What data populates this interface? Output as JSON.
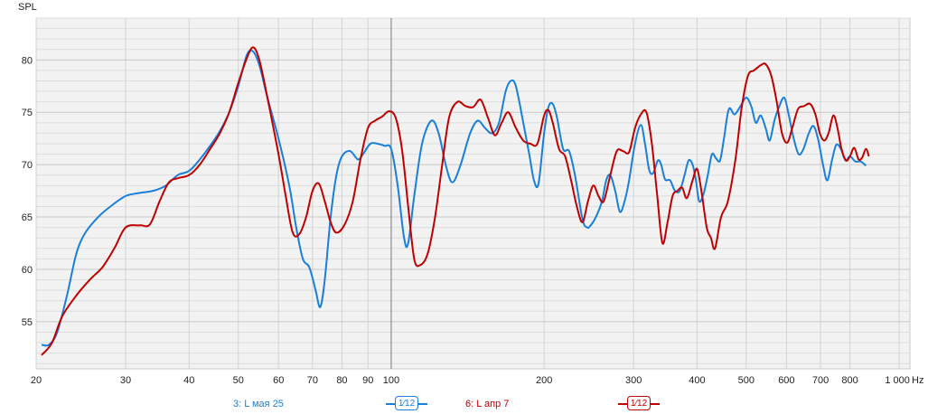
{
  "chart_data": {
    "type": "line",
    "ylabel": "SPL",
    "xlabel": "Hz",
    "x_scale": "log",
    "xlim": [
      20,
      1050
    ],
    "ylim": [
      50.5,
      84
    ],
    "grid": true,
    "yticks": [
      55,
      60,
      65,
      70,
      75,
      80
    ],
    "xtick_labels": [
      {
        "v": 20,
        "t": "20"
      },
      {
        "v": 30,
        "t": "30"
      },
      {
        "v": 40,
        "t": "40"
      },
      {
        "v": 50,
        "t": "50"
      },
      {
        "v": 60,
        "t": "60"
      },
      {
        "v": 70,
        "t": "70"
      },
      {
        "v": 80,
        "t": "80"
      },
      {
        "v": 90,
        "t": "90"
      },
      {
        "v": 100,
        "t": "100"
      },
      {
        "v": 200,
        "t": "200"
      },
      {
        "v": 300,
        "t": "300"
      },
      {
        "v": 400,
        "t": "400"
      },
      {
        "v": 500,
        "t": "500"
      },
      {
        "v": 600,
        "t": "600"
      },
      {
        "v": 700,
        "t": "700"
      },
      {
        "v": 800,
        "t": "800"
      },
      {
        "v": 1000,
        "t": "1 000"
      }
    ],
    "cursor_x": 100,
    "series": [
      {
        "name": "3: L мая 25",
        "color": "#1a7fd8",
        "smoothing": "1/12",
        "points": [
          [
            20.5,
            52.8
          ],
          [
            21.2,
            52.8
          ],
          [
            22,
            54
          ],
          [
            23,
            57.5
          ],
          [
            24,
            61.5
          ],
          [
            25,
            63.5
          ],
          [
            26.5,
            65
          ],
          [
            28,
            66
          ],
          [
            30,
            67
          ],
          [
            32,
            67.3
          ],
          [
            34,
            67.5
          ],
          [
            36,
            68
          ],
          [
            38,
            69
          ],
          [
            40,
            69.4
          ],
          [
            42,
            70.5
          ],
          [
            44,
            71.8
          ],
          [
            46,
            73.2
          ],
          [
            48,
            75
          ],
          [
            50,
            77.5
          ],
          [
            52,
            80.5
          ],
          [
            53.5,
            80.8
          ],
          [
            55,
            79.5
          ],
          [
            57,
            76.5
          ],
          [
            60,
            72.5
          ],
          [
            63,
            68
          ],
          [
            65,
            64
          ],
          [
            67,
            61
          ],
          [
            69,
            60.2
          ],
          [
            71,
            58
          ],
          [
            72.5,
            56.4
          ],
          [
            74,
            59
          ],
          [
            76,
            65
          ],
          [
            78,
            69
          ],
          [
            80,
            70.8
          ],
          [
            83,
            71.3
          ],
          [
            86,
            70.5
          ],
          [
            88,
            71
          ],
          [
            91,
            72
          ],
          [
            94,
            72
          ],
          [
            97,
            71.8
          ],
          [
            100,
            71.5
          ],
          [
            103,
            68
          ],
          [
            106,
            63
          ],
          [
            108,
            62.5
          ],
          [
            111,
            67
          ],
          [
            115,
            72
          ],
          [
            120,
            74.2
          ],
          [
            124,
            73
          ],
          [
            128,
            70
          ],
          [
            132,
            68.3
          ],
          [
            137,
            70
          ],
          [
            143,
            73
          ],
          [
            148,
            74.2
          ],
          [
            153,
            73.5
          ],
          [
            158,
            73
          ],
          [
            163,
            74
          ],
          [
            168,
            77
          ],
          [
            172,
            78
          ],
          [
            176,
            77.5
          ],
          [
            182,
            74
          ],
          [
            187,
            71
          ],
          [
            191,
            68.5
          ],
          [
            195,
            68.2
          ],
          [
            200,
            73
          ],
          [
            204,
            75.5
          ],
          [
            208,
            75.8
          ],
          [
            212,
            74.5
          ],
          [
            218,
            71.5
          ],
          [
            224,
            71.3
          ],
          [
            230,
            69
          ],
          [
            238,
            64.8
          ],
          [
            243,
            64
          ],
          [
            247,
            64.2
          ],
          [
            253,
            65
          ],
          [
            260,
            66.5
          ],
          [
            265,
            68.5
          ],
          [
            270,
            69
          ],
          [
            276,
            67.5
          ],
          [
            282,
            65.5
          ],
          [
            288,
            66.5
          ],
          [
            294,
            68.5
          ],
          [
            302,
            72
          ],
          [
            310,
            73.8
          ],
          [
            316,
            72
          ],
          [
            322,
            69.5
          ],
          [
            328,
            69.2
          ],
          [
            335,
            70.4
          ],
          [
            340,
            70
          ],
          [
            346,
            68.6
          ],
          [
            354,
            68.5
          ],
          [
            362,
            67.5
          ],
          [
            370,
            67.5
          ],
          [
            378,
            69
          ],
          [
            385,
            70.4
          ],
          [
            392,
            70
          ],
          [
            398,
            68.5
          ],
          [
            404,
            66.5
          ],
          [
            412,
            67.2
          ],
          [
            420,
            69
          ],
          [
            428,
            71
          ],
          [
            436,
            70.6
          ],
          [
            444,
            70.4
          ],
          [
            452,
            72.5
          ],
          [
            462,
            75.3
          ],
          [
            474,
            74.8
          ],
          [
            486,
            75.5
          ],
          [
            500,
            76.4
          ],
          [
            512,
            75.5
          ],
          [
            522,
            74
          ],
          [
            534,
            74.7
          ],
          [
            546,
            73.5
          ],
          [
            556,
            72.3
          ],
          [
            568,
            74.2
          ],
          [
            580,
            75.5
          ],
          [
            594,
            76.4
          ],
          [
            606,
            74.8
          ],
          [
            620,
            72.5
          ],
          [
            634,
            71
          ],
          [
            648,
            71.5
          ],
          [
            664,
            73
          ],
          [
            678,
            73.7
          ],
          [
            692,
            72.5
          ],
          [
            708,
            70
          ],
          [
            722,
            68.5
          ],
          [
            738,
            70.5
          ],
          [
            752,
            71.9
          ],
          [
            768,
            71.5
          ],
          [
            784,
            70.4
          ],
          [
            800,
            70.8
          ],
          [
            820,
            70.3
          ],
          [
            840,
            70.3
          ],
          [
            860,
            69.9
          ]
        ]
      },
      {
        "name": "6: L апр 7",
        "color": "#c00000",
        "smoothing": "1/12",
        "points": [
          [
            20.5,
            51.8
          ],
          [
            21.5,
            53
          ],
          [
            22.5,
            55.5
          ],
          [
            24,
            57.5
          ],
          [
            25.5,
            59
          ],
          [
            27,
            60.2
          ],
          [
            28.5,
            62
          ],
          [
            30,
            64
          ],
          [
            32,
            64.2
          ],
          [
            33.5,
            64.3
          ],
          [
            35,
            66.5
          ],
          [
            36.5,
            68.3
          ],
          [
            38,
            68.7
          ],
          [
            40,
            69
          ],
          [
            42,
            70
          ],
          [
            44,
            71.5
          ],
          [
            46,
            73
          ],
          [
            48,
            75
          ],
          [
            50,
            77.8
          ],
          [
            52,
            80.2
          ],
          [
            53.5,
            81.2
          ],
          [
            55,
            80
          ],
          [
            57,
            76.5
          ],
          [
            60,
            71
          ],
          [
            62,
            67
          ],
          [
            64,
            63.5
          ],
          [
            66,
            63.4
          ],
          [
            68,
            65
          ],
          [
            70,
            67.5
          ],
          [
            72,
            68.2
          ],
          [
            74,
            66.5
          ],
          [
            76,
            64.5
          ],
          [
            78,
            63.5
          ],
          [
            81,
            64.3
          ],
          [
            84,
            66.5
          ],
          [
            87,
            70.5
          ],
          [
            90,
            73.5
          ],
          [
            93,
            74.2
          ],
          [
            96,
            74.6
          ],
          [
            99,
            75.1
          ],
          [
            102,
            74.5
          ],
          [
            105,
            71.5
          ],
          [
            108,
            66
          ],
          [
            111,
            61
          ],
          [
            114,
            60.4
          ],
          [
            118,
            61.5
          ],
          [
            122,
            65
          ],
          [
            126,
            70
          ],
          [
            130,
            74.5
          ],
          [
            135,
            76
          ],
          [
            140,
            75.6
          ],
          [
            145,
            75.5
          ],
          [
            150,
            76.2
          ],
          [
            155,
            74.5
          ],
          [
            160,
            72.8
          ],
          [
            165,
            74
          ],
          [
            170,
            75
          ],
          [
            176,
            73.5
          ],
          [
            182,
            72.3
          ],
          [
            188,
            72
          ],
          [
            194,
            72
          ],
          [
            200,
            74.7
          ],
          [
            204,
            75.2
          ],
          [
            208,
            74
          ],
          [
            214,
            71.5
          ],
          [
            220,
            70.8
          ],
          [
            226,
            68.5
          ],
          [
            232,
            66
          ],
          [
            238,
            64.5
          ],
          [
            244,
            66.5
          ],
          [
            250,
            68
          ],
          [
            256,
            67
          ],
          [
            262,
            66.5
          ],
          [
            270,
            69
          ],
          [
            278,
            71.3
          ],
          [
            286,
            71.3
          ],
          [
            294,
            71.2
          ],
          [
            302,
            73.5
          ],
          [
            310,
            74.8
          ],
          [
            318,
            75
          ],
          [
            326,
            72
          ],
          [
            334,
            67
          ],
          [
            342,
            62.5
          ],
          [
            350,
            64.5
          ],
          [
            358,
            67
          ],
          [
            366,
            67.5
          ],
          [
            374,
            67.8
          ],
          [
            382,
            66.8
          ],
          [
            392,
            68.5
          ],
          [
            400,
            69.6
          ],
          [
            408,
            67.5
          ],
          [
            418,
            64
          ],
          [
            426,
            63
          ],
          [
            434,
            62
          ],
          [
            446,
            65
          ],
          [
            460,
            66.5
          ],
          [
            476,
            70.5
          ],
          [
            490,
            75.5
          ],
          [
            504,
            78.5
          ],
          [
            518,
            79
          ],
          [
            534,
            79.5
          ],
          [
            546,
            79.6
          ],
          [
            560,
            78.5
          ],
          [
            574,
            76
          ],
          [
            588,
            73
          ],
          [
            602,
            72.1
          ],
          [
            616,
            73.5
          ],
          [
            632,
            75.3
          ],
          [
            650,
            75.6
          ],
          [
            668,
            75.8
          ],
          [
            684,
            74.8
          ],
          [
            698,
            73
          ],
          [
            712,
            72.3
          ],
          [
            726,
            73
          ],
          [
            742,
            74.7
          ],
          [
            756,
            73.5
          ],
          [
            770,
            71.5
          ],
          [
            786,
            70.4
          ],
          [
            800,
            70.8
          ],
          [
            816,
            71.6
          ],
          [
            832,
            70.5
          ],
          [
            846,
            70.7
          ],
          [
            860,
            71.5
          ],
          [
            872,
            70.8
          ]
        ]
      }
    ]
  },
  "legend": [
    {
      "label": "3: L мая 25",
      "color": "#1a7fd8",
      "smoothing": "1⁄12"
    },
    {
      "label": "6: L апр 7",
      "color": "#c00000",
      "smoothing": "1⁄12"
    }
  ]
}
